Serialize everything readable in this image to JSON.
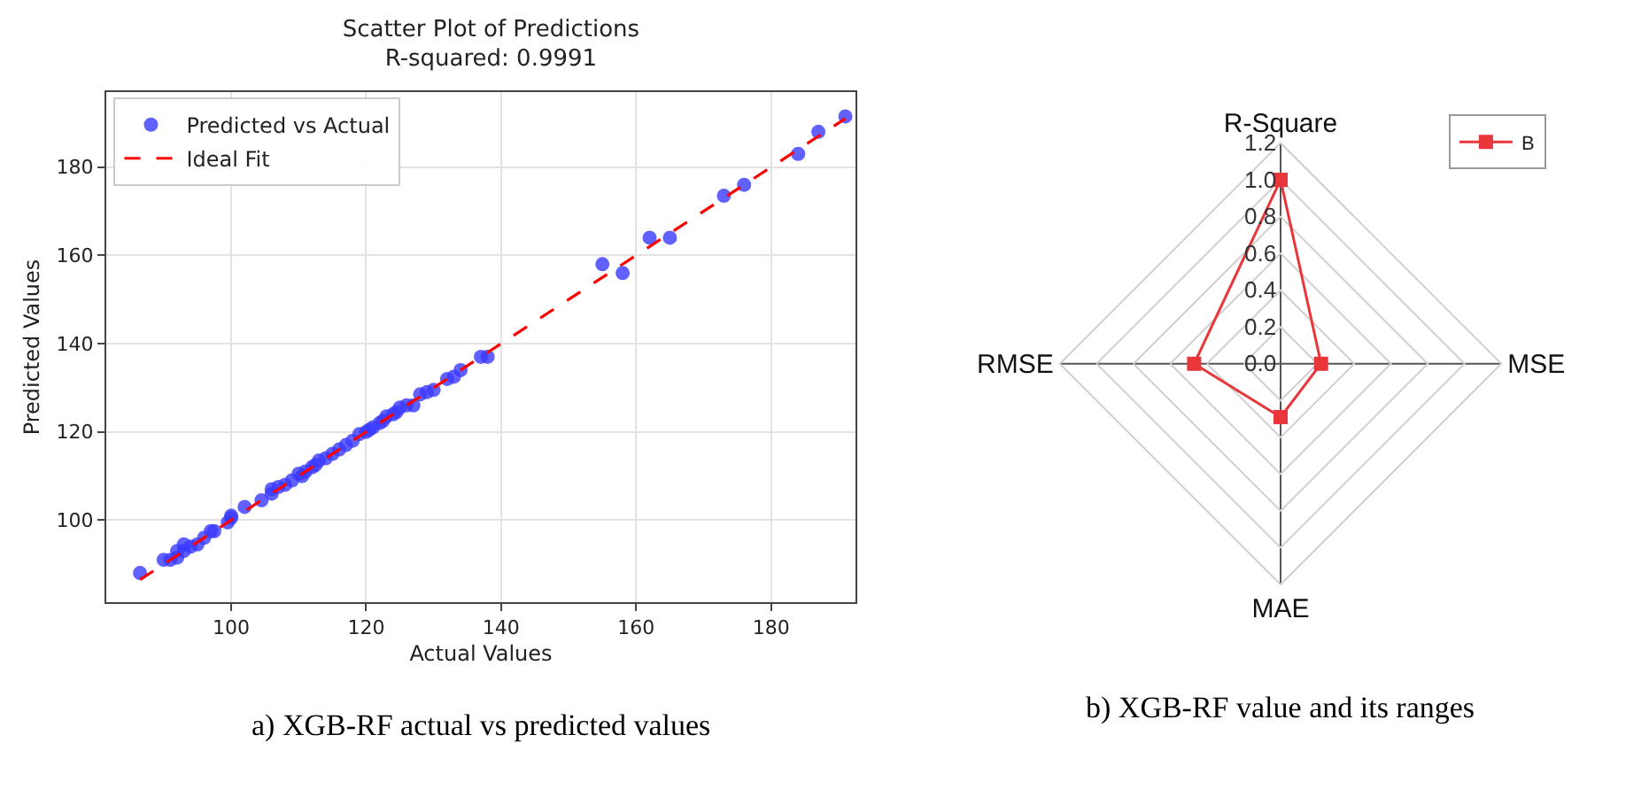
{
  "chart_data": [
    {
      "type": "scatter",
      "title": "Scatter Plot of Predictions",
      "subtitle": "R-squared: 0.9991",
      "xlabel": "Actual Values",
      "ylabel": "Predicted Values",
      "annotations": [
        "a) XGB-RF actual vs predicted values"
      ],
      "xlim": [
        81.5,
        192.5
      ],
      "ylim": [
        81.4,
        197
      ],
      "xticks": [
        100,
        120,
        140,
        160,
        180
      ],
      "yticks": [
        100,
        120,
        140,
        160,
        180
      ],
      "grid": true,
      "legend": "top left",
      "marker": "circle",
      "series": [
        {
          "name": "Predicted vs Actual",
          "type": "scatter",
          "color": "#3a3aff",
          "x": [
            86.5,
            90,
            91,
            92,
            92,
            93,
            93,
            94,
            95,
            96,
            97,
            97.5,
            99.5,
            100,
            100,
            102,
            104.5,
            106,
            106,
            107,
            108,
            109,
            110,
            110.5,
            111,
            112,
            112.5,
            113,
            114,
            115,
            116,
            117,
            118,
            119,
            120,
            120.5,
            121,
            122,
            122.5,
            123,
            124,
            124.5,
            125,
            126,
            127,
            128,
            129,
            130,
            132,
            133,
            134,
            137,
            138,
            155,
            158,
            162,
            165,
            173,
            176,
            184,
            187,
            191
          ],
          "values": [
            88,
            91,
            91,
            91.5,
            93,
            94.5,
            93,
            94,
            94.5,
            96,
            97.5,
            97.5,
            99.5,
            100.5,
            101,
            103,
            104.5,
            106,
            107,
            107.5,
            108,
            109,
            110.5,
            110,
            111,
            112,
            112.5,
            113.5,
            114,
            115,
            116,
            117,
            118,
            119.5,
            120,
            120.5,
            121,
            122,
            122.5,
            123.5,
            124,
            124.5,
            125.5,
            126,
            126,
            128.5,
            129,
            129.5,
            132,
            132.5,
            134,
            137,
            137,
            158,
            156,
            164,
            164,
            173.5,
            176,
            183,
            188,
            191.5
          ]
        },
        {
          "name": "Ideal Fit",
          "type": "line",
          "color": "#ff0000",
          "line_style": "dashed",
          "marker": "none",
          "x": [
            86.5,
            191
          ],
          "values": [
            86.5,
            191
          ]
        }
      ]
    },
    {
      "type": "radar",
      "categories": [
        "R-Square",
        "MSE",
        "MAE",
        "RMSE"
      ],
      "annotations": [
        "b) XGB-RF value and its ranges"
      ],
      "ylim": [
        0,
        1.2
      ],
      "yticks": [
        {
          "value": 0,
          "label": "0.0"
        },
        0.2,
        0.4,
        0.6,
        0.8,
        {
          "value": 1,
          "label": "1.0"
        },
        1.2
      ],
      "grid": true,
      "legend": "top right",
      "marker": "square",
      "series": [
        {
          "name": "B",
          "color": "#e8363a",
          "values": [
            1.0,
            0.22,
            0.29,
            0.47
          ]
        }
      ]
    }
  ]
}
